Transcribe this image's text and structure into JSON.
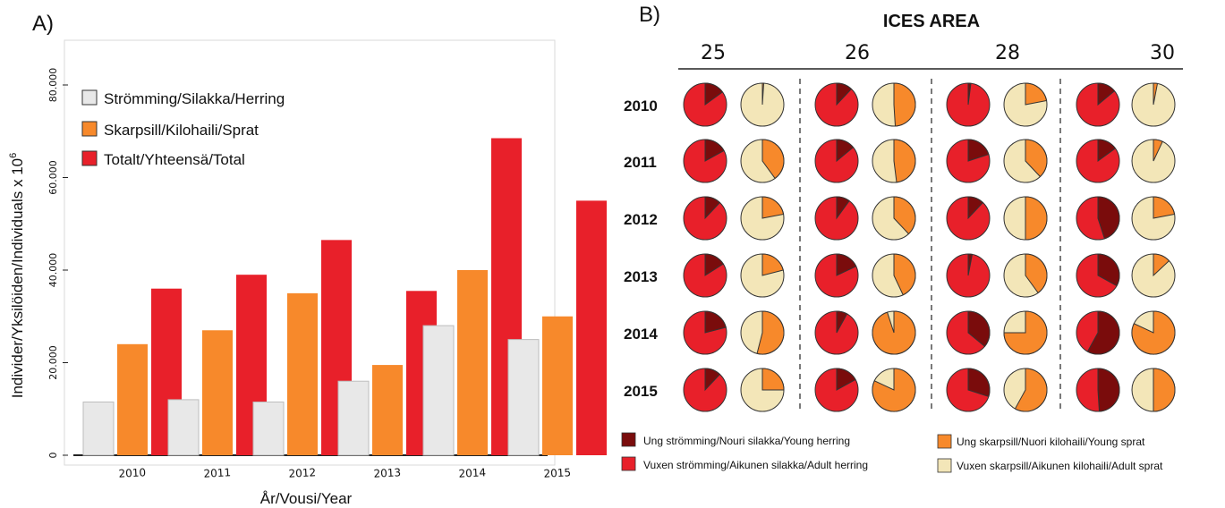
{
  "panel_a": {
    "label": "A)",
    "legend": [
      "Strömming/Silakka/Herring",
      "Skarpsill/Kilohaili/Sprat",
      "Totalt/Yhteensä/Total"
    ],
    "xlabel": "År/Vousi/Year",
    "ylabel_main": "Individer/Yksilöiden/Individuals x 10",
    "ylabel_sup": "6"
  },
  "panel_b": {
    "label": "B)",
    "title": "ICES AREA",
    "areas": [
      "25",
      "26",
      "28",
      "30"
    ],
    "years": [
      "2010",
      "2011",
      "2012",
      "2013",
      "2014",
      "2015"
    ],
    "legend": {
      "young_herring": "Ung strömming/Nouri silakka/Young herring",
      "adult_herring": "Vuxen strömming/Aikunen silakka/Adult herring",
      "young_sprat": "Ung skarpsill/Nuori kilohaili/Young sprat",
      "adult_sprat": "Vuxen skarpsill/Aikunen kilohaili/Adult sprat"
    }
  },
  "colors": {
    "herring": "#e8e8e8",
    "sprat": "#f7892b",
    "total": "#e8202a",
    "young_herring": "#7a0c0c",
    "adult_herring": "#e8202a",
    "young_sprat": "#f7892b",
    "adult_sprat": "#f3e6b8"
  },
  "chart_data": [
    {
      "type": "bar",
      "categories": [
        "2010",
        "2011",
        "2012",
        "2013",
        "2014",
        "2015"
      ],
      "series": [
        {
          "name": "Strömming/Silakka/Herring",
          "values": [
            11500,
            12000,
            11500,
            16000,
            28000,
            25000
          ]
        },
        {
          "name": "Skarpsill/Kilohaili/Sprat",
          "values": [
            24000,
            27000,
            35000,
            19500,
            40000,
            30000
          ]
        },
        {
          "name": "Totalt/Yhteensä/Total",
          "values": [
            36000,
            39000,
            46500,
            35500,
            68500,
            55000
          ]
        }
      ],
      "ylim": [
        0,
        80000
      ],
      "yticks": [
        "0",
        "20.000",
        "40.000",
        "60.000",
        "80.000"
      ],
      "xlabel": "År/Vousi/Year",
      "ylabel": "Individer/Yksilöiden/Individuals x 10^6",
      "legend_position": "top-left"
    },
    {
      "type": "pie",
      "title": "ICES AREA",
      "areas": [
        "25",
        "26",
        "28",
        "30"
      ],
      "years": [
        "2010",
        "2011",
        "2012",
        "2013",
        "2014",
        "2015"
      ],
      "herring_young_fraction": [
        [
          0.15,
          0.12,
          0.02,
          0.14
        ],
        [
          0.17,
          0.14,
          0.2,
          0.15
        ],
        [
          0.12,
          0.1,
          0.12,
          0.45
        ],
        [
          0.16,
          0.18,
          0.03,
          0.33
        ],
        [
          0.21,
          0.08,
          0.36,
          0.58
        ],
        [
          0.12,
          0.17,
          0.3,
          0.49
        ]
      ],
      "sprat_young_fraction": [
        [
          0.01,
          0.49,
          0.22,
          0.03
        ],
        [
          0.4,
          0.48,
          0.38,
          0.07
        ],
        [
          0.22,
          0.38,
          0.5,
          0.22
        ],
        [
          0.21,
          0.43,
          0.4,
          0.13
        ],
        [
          0.54,
          0.95,
          0.75,
          0.82
        ],
        [
          0.25,
          0.82,
          0.58,
          0.5
        ]
      ]
    }
  ]
}
